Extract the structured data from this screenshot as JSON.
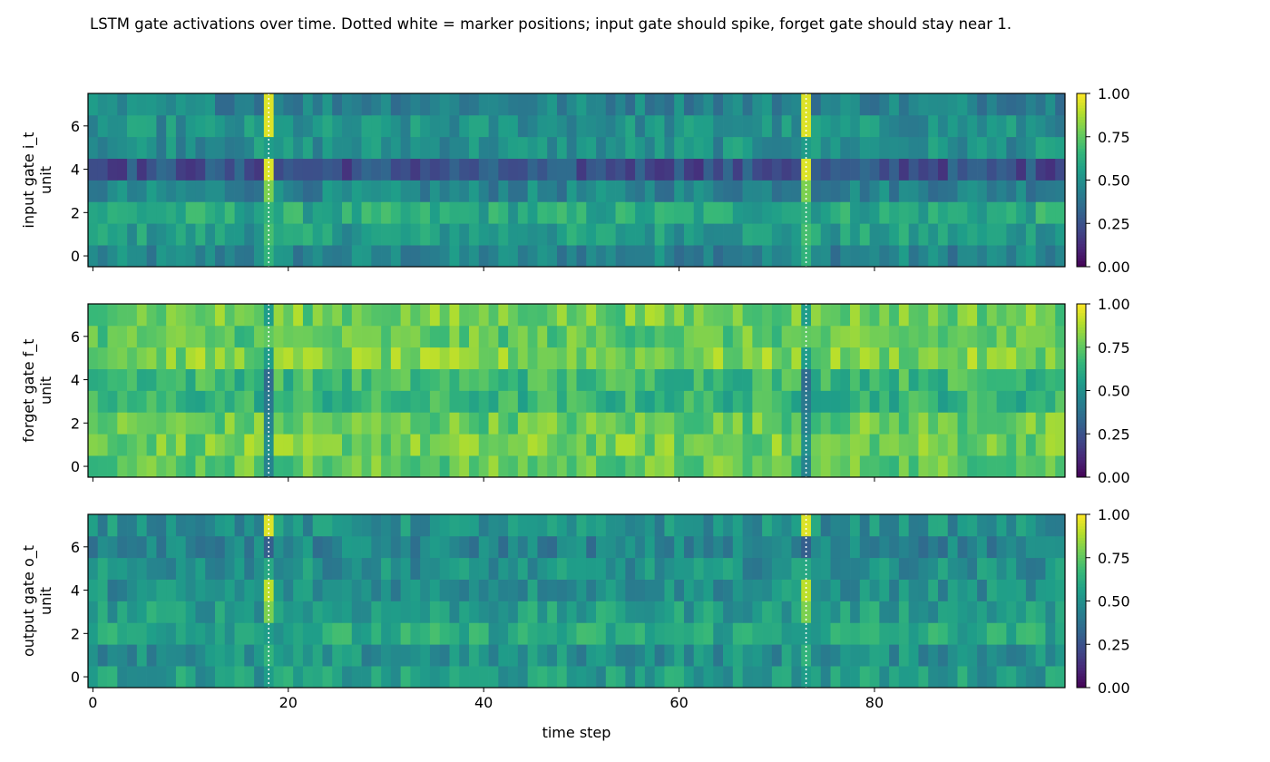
{
  "title": "LSTM gate activations over time. Dotted white = marker positions; input gate should spike, forget gate should stay near 1.",
  "chart_data": [
    {
      "type": "heatmap",
      "ylabel": "input gate i_t\nunit",
      "xlabel": "",
      "x_ticks": [
        0,
        20,
        40,
        60,
        80
      ],
      "y_ticks": [
        0,
        2,
        4,
        6
      ],
      "xlim": [
        -0.5,
        99.5
      ],
      "ylim": [
        -0.5,
        7.5
      ],
      "colorbar": {
        "range": [
          0,
          1
        ],
        "ticks": [
          "0.00",
          "0.25",
          "0.50",
          "0.75",
          "1.00"
        ],
        "colormap": "viridis"
      },
      "marker_positions": [
        18,
        73
      ],
      "approx_row_means": [
        0.45,
        0.55,
        0.6,
        0.45,
        0.25,
        0.5,
        0.5,
        0.45
      ],
      "approx_marker_values": [
        0.65,
        0.7,
        0.65,
        0.8,
        0.95,
        0.55,
        0.95,
        0.95
      ]
    },
    {
      "type": "heatmap",
      "ylabel": "forget gate f_t\nunit",
      "xlabel": "",
      "x_ticks": [
        0,
        20,
        40,
        60,
        80
      ],
      "y_ticks": [
        0,
        2,
        4,
        6
      ],
      "xlim": [
        -0.5,
        99.5
      ],
      "ylim": [
        -0.5,
        7.5
      ],
      "colorbar": {
        "range": [
          0,
          1
        ],
        "ticks": [
          "0.00",
          "0.25",
          "0.50",
          "0.75",
          "1.00"
        ],
        "colormap": "viridis"
      },
      "marker_positions": [
        18,
        73
      ],
      "approx_row_means": [
        0.75,
        0.78,
        0.76,
        0.65,
        0.68,
        0.8,
        0.74,
        0.78
      ],
      "approx_marker_values": [
        0.45,
        0.5,
        0.45,
        0.4,
        0.35,
        0.55,
        0.75,
        0.55
      ]
    },
    {
      "type": "heatmap",
      "ylabel": "output gate o_t\nunit",
      "xlabel": "time step",
      "x_ticks": [
        0,
        20,
        40,
        60,
        80
      ],
      "y_ticks": [
        0,
        2,
        4,
        6
      ],
      "xlim": [
        -0.5,
        99.5
      ],
      "ylim": [
        -0.5,
        7.5
      ],
      "colorbar": {
        "range": [
          0,
          1
        ],
        "ticks": [
          "0.00",
          "0.25",
          "0.50",
          "0.75",
          "1.00"
        ],
        "colormap": "viridis"
      },
      "marker_positions": [
        18,
        73
      ],
      "approx_row_means": [
        0.55,
        0.5,
        0.6,
        0.55,
        0.5,
        0.5,
        0.45,
        0.5
      ],
      "approx_marker_values": [
        0.55,
        0.65,
        0.55,
        0.8,
        0.9,
        0.6,
        0.3,
        0.95
      ]
    }
  ]
}
